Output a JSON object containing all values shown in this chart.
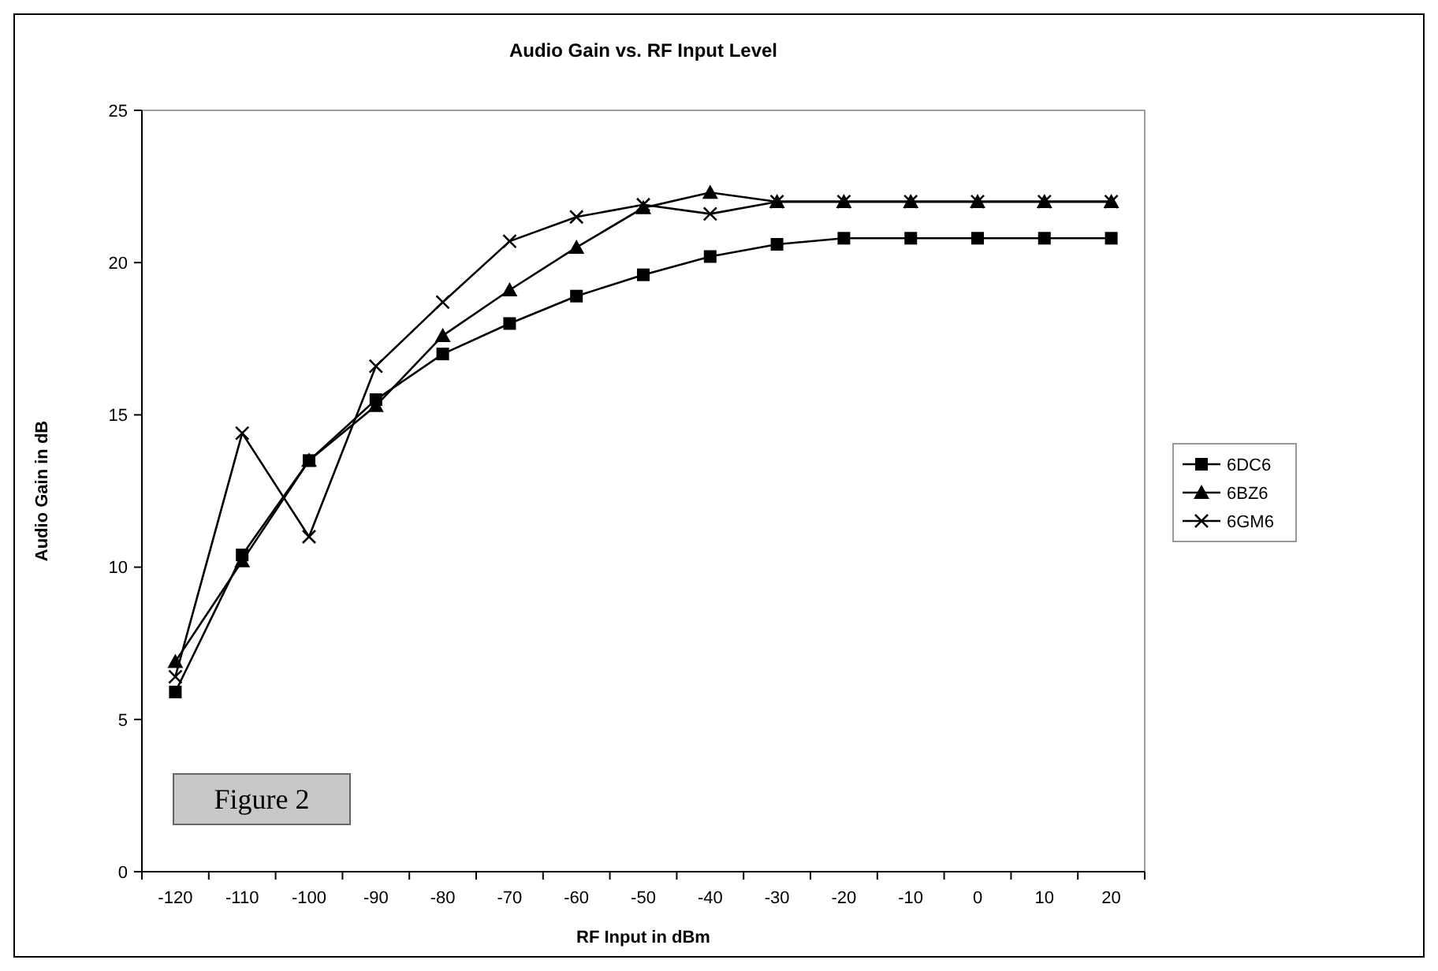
{
  "chart_data": {
    "type": "line",
    "title": "Audio Gain vs. RF Input Level",
    "xlabel": "RF Input in dBm",
    "ylabel": "Audio Gain in dB",
    "categories": [
      "-120",
      "-110",
      "-100",
      "-90",
      "-80",
      "-70",
      "-60",
      "-50",
      "-40",
      "-30",
      "-20",
      "-10",
      "0",
      "10",
      "20"
    ],
    "series": [
      {
        "name": "6DC6",
        "color": "#000000",
        "marker": "square",
        "values": [
          5.9,
          10.4,
          13.5,
          15.5,
          17.0,
          18.0,
          18.9,
          19.6,
          20.2,
          20.6,
          20.8,
          20.8,
          20.8,
          20.8,
          20.8
        ]
      },
      {
        "name": "6BZ6",
        "color": "#000000",
        "marker": "triangle",
        "values": [
          6.9,
          10.2,
          13.5,
          15.3,
          17.6,
          19.1,
          20.5,
          21.8,
          22.3,
          22.0,
          22.0,
          22.0,
          22.0,
          22.0,
          22.0
        ]
      },
      {
        "name": "6GM6",
        "color": "#000000",
        "marker": "cross",
        "values": [
          6.4,
          14.4,
          11.0,
          16.6,
          18.7,
          20.7,
          21.5,
          21.9,
          21.6,
          22.0,
          22.0,
          22.0,
          22.0,
          22.0,
          22.0
        ]
      }
    ],
    "ylim": [
      0,
      25
    ],
    "yticks": [
      0,
      5,
      10,
      15,
      20,
      25
    ],
    "grid": false,
    "legend": "right",
    "line_style": "solid",
    "annotations": [
      "Figure 2"
    ]
  }
}
